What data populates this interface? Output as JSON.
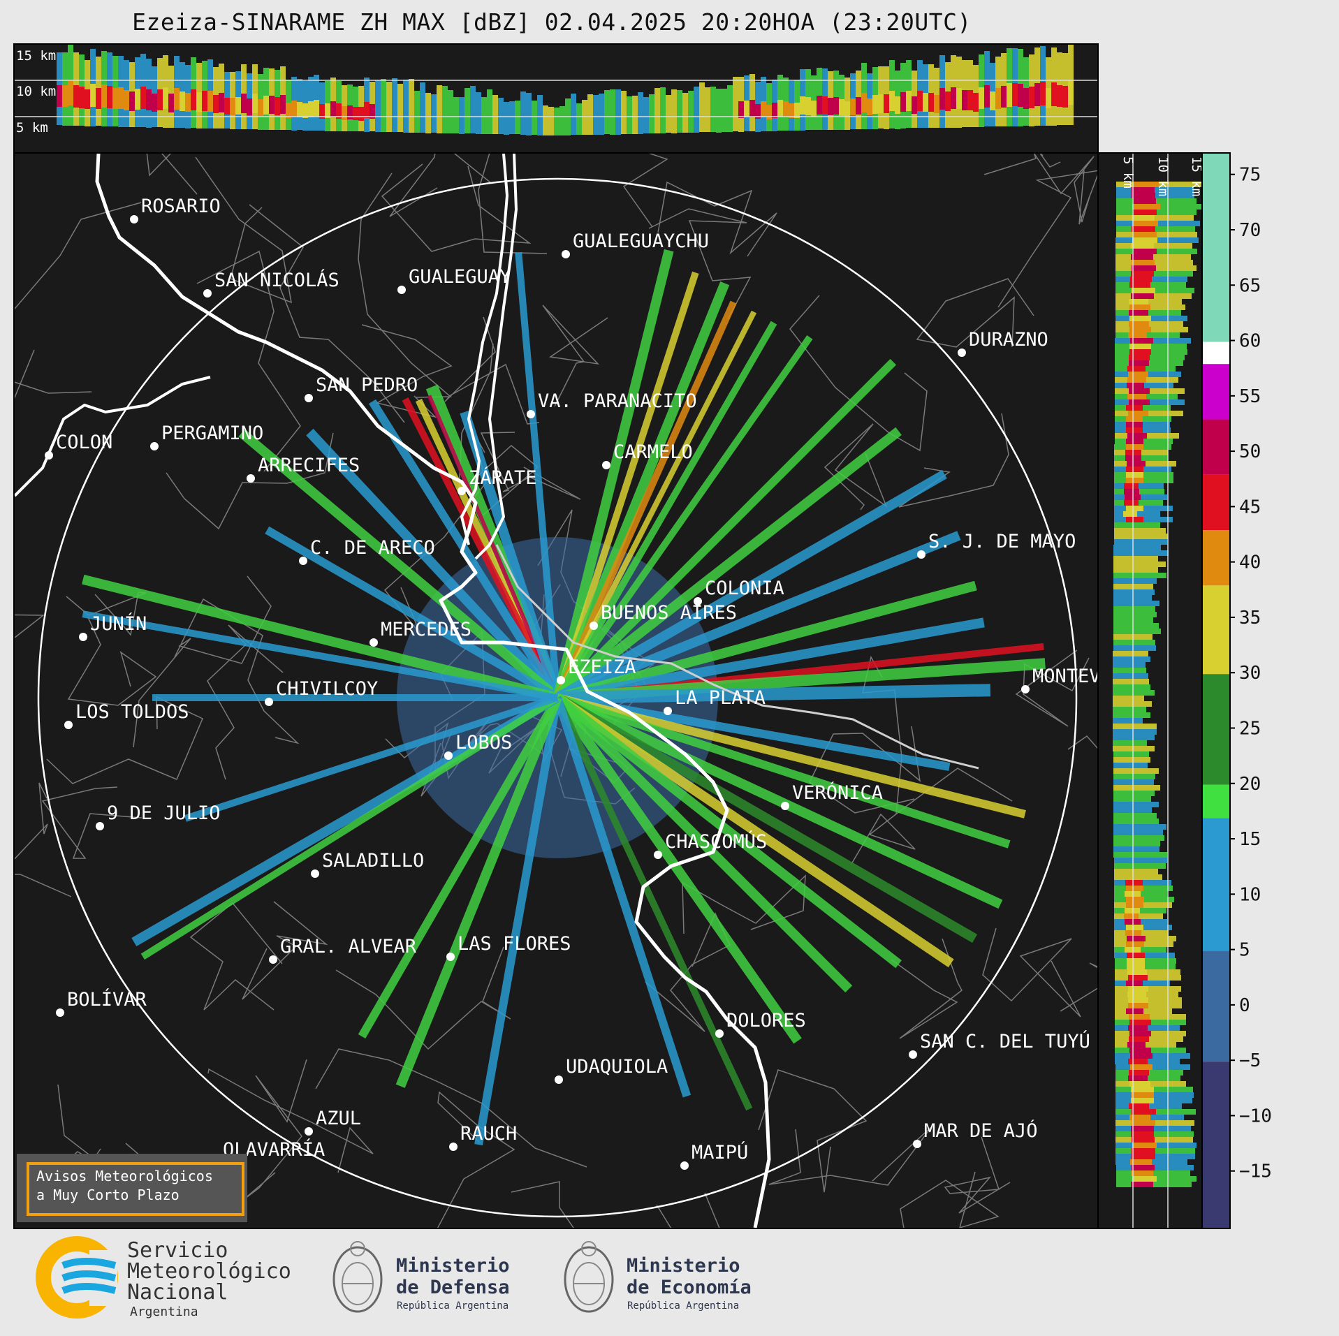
{
  "title": "Ezeiza-SINARAME ZH MAX [dBZ] 02.04.2025 20:20HOA (23:20UTC)",
  "height_labels_top": [
    "15 km",
    "10 km",
    "5 km"
  ],
  "height_labels_side": [
    "5 km",
    "10 km",
    "15 km"
  ],
  "colorbar": {
    "ticks": [
      "75",
      "70",
      "65",
      "60",
      "55",
      "50",
      "45",
      "40",
      "35",
      "30",
      "25",
      "20",
      "15",
      "10",
      "5",
      "0",
      "−5",
      "−10",
      "−15"
    ],
    "stops": [
      {
        "from": 60,
        "to": 77,
        "color": "#7fd8b8"
      },
      {
        "from": 58,
        "to": 60,
        "color": "#ffffff"
      },
      {
        "from": 53,
        "to": 58,
        "color": "#cc00cc"
      },
      {
        "from": 48,
        "to": 53,
        "color": "#c0004a"
      },
      {
        "from": 43,
        "to": 48,
        "color": "#e01020"
      },
      {
        "from": 38,
        "to": 43,
        "color": "#e08a10"
      },
      {
        "from": 30,
        "to": 38,
        "color": "#d8d030"
      },
      {
        "from": 20,
        "to": 30,
        "color": "#2c8a2c"
      },
      {
        "from": 17,
        "to": 20,
        "color": "#40e040"
      },
      {
        "from": 5,
        "to": 17,
        "color": "#2a9ad0"
      },
      {
        "from": -5,
        "to": 5,
        "color": "#3a6aa0"
      },
      {
        "from": -20,
        "to": -5,
        "color": "#3a3a70"
      }
    ]
  },
  "cities": [
    {
      "name": "ROSARIO"
    },
    {
      "name": "GUALEGUAYCHU"
    },
    {
      "name": "GUALEGUAY"
    },
    {
      "name": "SAN NICOLÁS"
    },
    {
      "name": "DURAZNO"
    },
    {
      "name": "SAN PEDRO"
    },
    {
      "name": "VA. PARANACITO"
    },
    {
      "name": "COLON"
    },
    {
      "name": "PERGAMINO"
    },
    {
      "name": "CARMELO"
    },
    {
      "name": "ARRECIFES"
    },
    {
      "name": "ZÁRATE"
    },
    {
      "name": "S. J. DE MAYO"
    },
    {
      "name": "C. DE ARECO"
    },
    {
      "name": "COLONIA"
    },
    {
      "name": "JUNÍN"
    },
    {
      "name": "BUENOS AIRES"
    },
    {
      "name": "MERCEDES"
    },
    {
      "name": "EZEIZA"
    },
    {
      "name": "MONTEVIDEO"
    },
    {
      "name": "CHIVILCOY"
    },
    {
      "name": "LA PLATA"
    },
    {
      "name": "LOS TOLDOS"
    },
    {
      "name": "LOBOS"
    },
    {
      "name": "VERÓNICA"
    },
    {
      "name": "9 DE JULIO"
    },
    {
      "name": "CHASCOMÚS"
    },
    {
      "name": "SALADILLO"
    },
    {
      "name": "GRAL. ALVEAR"
    },
    {
      "name": "LAS FLORES"
    },
    {
      "name": "BOLÍVAR"
    },
    {
      "name": "DOLORES"
    },
    {
      "name": "SAN C. DEL TUYÚ"
    },
    {
      "name": "UDAQUIOLA"
    },
    {
      "name": "AZUL"
    },
    {
      "name": "RAUCH"
    },
    {
      "name": "MAR DE AJÓ"
    },
    {
      "name": "OLAVARRÍA"
    },
    {
      "name": "MAIPÚ"
    }
  ],
  "warning_box": {
    "line1": "Avisos Meteorológicos",
    "line2": "a Muy Corto Plazo"
  },
  "logos": {
    "smn": {
      "line1": "Servicio",
      "line2": "Meteorológico",
      "line3": "Nacional",
      "line4": "Argentina"
    },
    "defensa": {
      "line1": "Ministerio",
      "line2": "de Defensa",
      "line3": "República Argentina"
    },
    "economia": {
      "line1": "Ministerio",
      "line2": "de Economía",
      "line3": "República Argentina"
    }
  }
}
